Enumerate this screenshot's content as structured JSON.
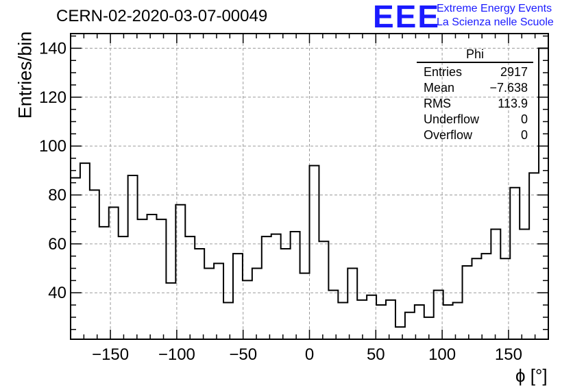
{
  "header": {
    "run_title": "CERN-02-2020-03-07-00049",
    "logo_text": "EEE",
    "logo_line1": "Extreme Energy Events",
    "logo_line2": "La Scienza nelle Scuole"
  },
  "stats_box": {
    "title": "Phi",
    "rows": [
      {
        "label": "Entries",
        "value": "2917"
      },
      {
        "label": "Mean",
        "value": "−7.638"
      },
      {
        "label": "RMS",
        "value": "113.9"
      },
      {
        "label": "Underflow",
        "value": "0"
      },
      {
        "label": "Overflow",
        "value": "0"
      }
    ]
  },
  "colors": {
    "accent": "#1a1aff",
    "grid": "#9a9a9a",
    "line": "#000000"
  },
  "chart_data": {
    "type": "bar",
    "style": "step-histogram",
    "title": "",
    "xlabel": "ϕ [°]",
    "ylabel": "Entries/bin",
    "xlim": [
      -180,
      180
    ],
    "ylim": [
      21,
      146
    ],
    "bin_width": 7.2,
    "x_ticks": [
      -150,
      -100,
      -50,
      0,
      50,
      100,
      150
    ],
    "x_tick_labels": [
      "−150",
      "−100",
      "−50",
      "0",
      "50",
      "100",
      "150"
    ],
    "y_ticks": [
      40,
      60,
      80,
      100,
      120,
      140
    ],
    "y_tick_labels": [
      "40",
      "60",
      "80",
      "100",
      "120",
      "140"
    ],
    "grid": true,
    "values": [
      87,
      93,
      82,
      67,
      75,
      63,
      88,
      70,
      72,
      70,
      44,
      76,
      63,
      58,
      50,
      52,
      36,
      56,
      45,
      50,
      63,
      64,
      58,
      65,
      48,
      92,
      61,
      41,
      36,
      50,
      37,
      39,
      35,
      37,
      26,
      32,
      35,
      30,
      41,
      35,
      36,
      51,
      54,
      56,
      66,
      54,
      83,
      66,
      89,
      140
    ]
  }
}
